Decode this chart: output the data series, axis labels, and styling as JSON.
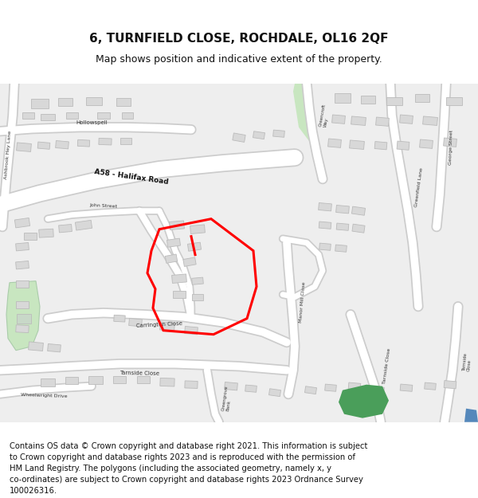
{
  "title": "6, TURNFIELD CLOSE, ROCHDALE, OL16 2QF",
  "subtitle": "Map shows position and indicative extent of the property.",
  "footer": "Contains OS data © Crown copyright and database right 2021. This information is subject to Crown copyright and database rights 2023 and is reproduced with the permission of HM Land Registry. The polygons (including the associated geometry, namely x, y co-ordinates) are subject to Crown copyright and database rights 2023 Ordnance Survey 100026316.",
  "map_bg": "#eeeeee",
  "road_color": "#ffffff",
  "road_border": "#cccccc",
  "green_light": "#c8e6c0",
  "green_dark": "#4a9e5a",
  "building_fill": "#d8d8d8",
  "building_edge": "#bbbbbb",
  "red_color": "#ff0000",
  "blue_color": "#5588bb",
  "title_fontsize": 11,
  "subtitle_fontsize": 9,
  "footer_fontsize": 7.2,
  "road_label_color": "#333333",
  "road_label_bold": "#111111"
}
